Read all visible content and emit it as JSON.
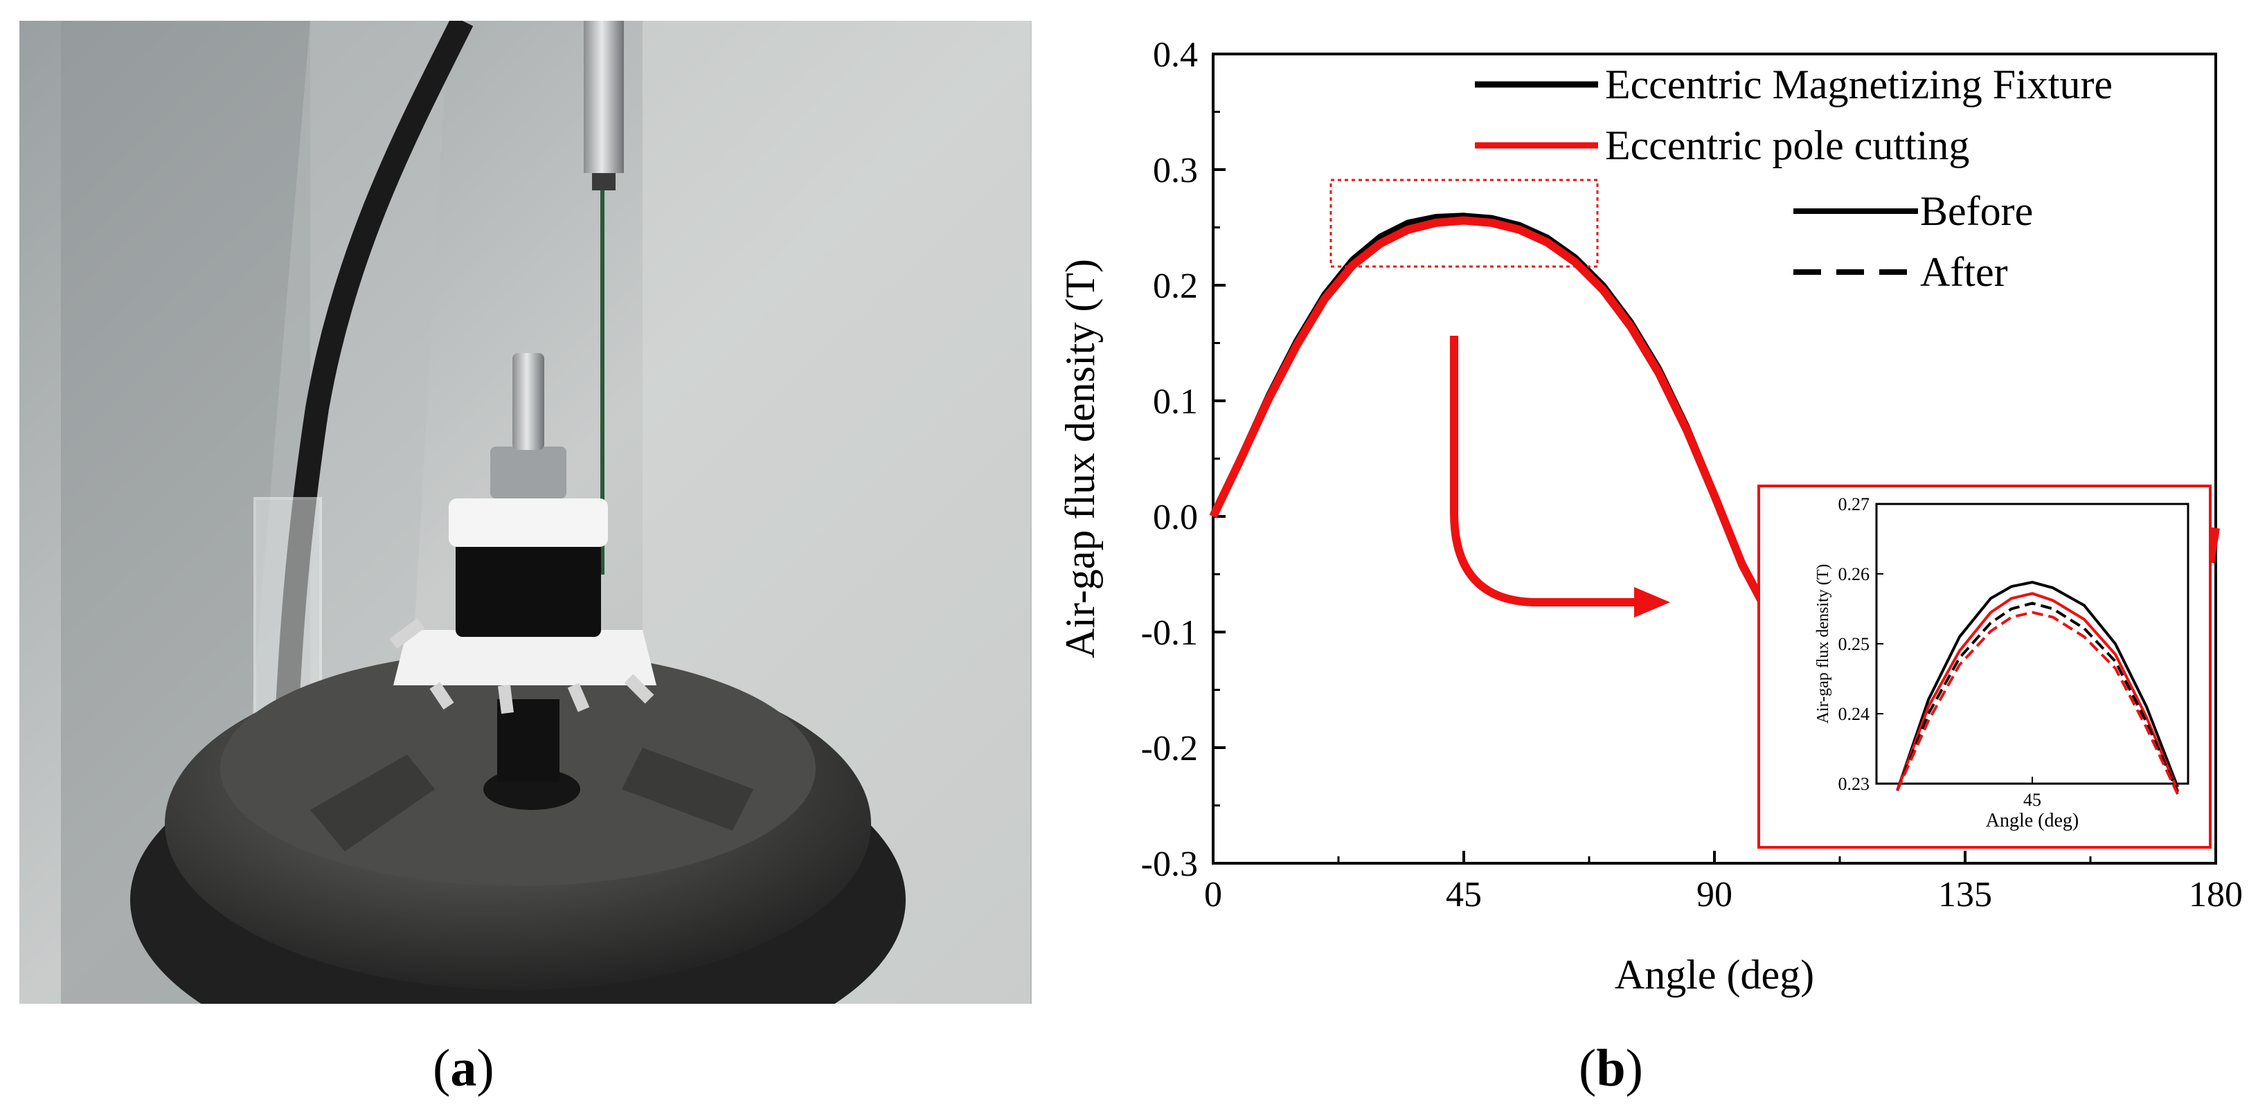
{
  "panels": {
    "a": {
      "label": "a"
    },
    "b": {
      "label": "b"
    }
  },
  "colors": {
    "black": "#000000",
    "red": "#ee1111"
  },
  "chart_data": [
    {
      "type": "line",
      "xlabel": "Angle (deg)",
      "ylabel": "Air-gap flux density (T)",
      "xlim": [
        0,
        180
      ],
      "ylim": [
        -0.3,
        0.4
      ],
      "xticks": [
        "0",
        "45",
        "90",
        "135",
        "180"
      ],
      "yticks": [
        "0.4",
        "0.3",
        "0.2",
        "0.1",
        "0.0",
        "-0.1",
        "-0.2",
        "-0.3"
      ],
      "legend": {
        "placement": "top-right",
        "color_entries": [
          {
            "label": "Eccentric Magnetizing Fixture",
            "color": "#000000"
          },
          {
            "label": "Eccentric pole cutting",
            "color": "#ee1111"
          }
        ],
        "style_entries": [
          {
            "label": "Before",
            "dash": "solid"
          },
          {
            "label": "After",
            "dash": "dashed"
          }
        ]
      },
      "series": [
        {
          "x": [
            0,
            5,
            10,
            15,
            20,
            25,
            30,
            35,
            40,
            45,
            50,
            55,
            60,
            65,
            70,
            75,
            80,
            85,
            90,
            95,
            100
          ],
          "y": [
            0.0,
            0.052,
            0.105,
            0.152,
            0.192,
            0.222,
            0.242,
            0.254,
            0.259,
            0.26,
            0.258,
            0.252,
            0.241,
            0.224,
            0.2,
            0.168,
            0.128,
            0.078,
            0.02,
            -0.04,
            -0.085
          ]
        },
        {
          "x": [
            0,
            5,
            10,
            15,
            20,
            25,
            30,
            35,
            40,
            45,
            50,
            55,
            60,
            65,
            70,
            75,
            80,
            85,
            90,
            95,
            100
          ],
          "y": [
            0.0,
            0.05,
            0.102,
            0.148,
            0.188,
            0.217,
            0.236,
            0.248,
            0.254,
            0.256,
            0.254,
            0.248,
            0.237,
            0.22,
            0.196,
            0.164,
            0.124,
            0.075,
            0.018,
            -0.042,
            -0.087
          ]
        }
      ]
    },
    {
      "type": "line",
      "xlabel": "Angle (deg)",
      "ylabel": "Air-gap flux density (T)",
      "ylim": [
        0.23,
        0.27
      ],
      "xlim": [
        30,
        60
      ],
      "xticks": [
        "45"
      ],
      "yticks": [
        "0.27",
        "0.26",
        "0.25",
        "0.24",
        "0.23"
      ],
      "series": [
        {
          "color": "#000000",
          "dash": "solid",
          "x": [
            32,
            35,
            38,
            41,
            43,
            45,
            47,
            50,
            53,
            56,
            59
          ],
          "y": [
            0.229,
            0.242,
            0.251,
            0.2565,
            0.2582,
            0.2588,
            0.258,
            0.2555,
            0.25,
            0.241,
            0.2295
          ]
        },
        {
          "color": "#ee1111",
          "dash": "solid",
          "x": [
            32,
            35,
            38,
            41,
            43,
            45,
            47,
            50,
            53,
            56,
            59
          ],
          "y": [
            0.229,
            0.241,
            0.249,
            0.2545,
            0.2565,
            0.2572,
            0.2562,
            0.2535,
            0.2485,
            0.2395,
            0.229
          ]
        },
        {
          "color": "#000000",
          "dash": "dashed",
          "x": [
            32,
            35,
            38,
            41,
            43,
            45,
            47,
            50,
            53,
            56,
            59
          ],
          "y": [
            0.229,
            0.24,
            0.248,
            0.253,
            0.255,
            0.2558,
            0.255,
            0.2522,
            0.2475,
            0.2388,
            0.2288
          ]
        },
        {
          "color": "#ee1111",
          "dash": "dashed",
          "x": [
            32,
            35,
            38,
            41,
            43,
            45,
            47,
            50,
            53,
            56,
            59
          ],
          "y": [
            0.229,
            0.239,
            0.247,
            0.2518,
            0.2538,
            0.2545,
            0.2538,
            0.251,
            0.2465,
            0.238,
            0.2285
          ]
        }
      ]
    }
  ]
}
